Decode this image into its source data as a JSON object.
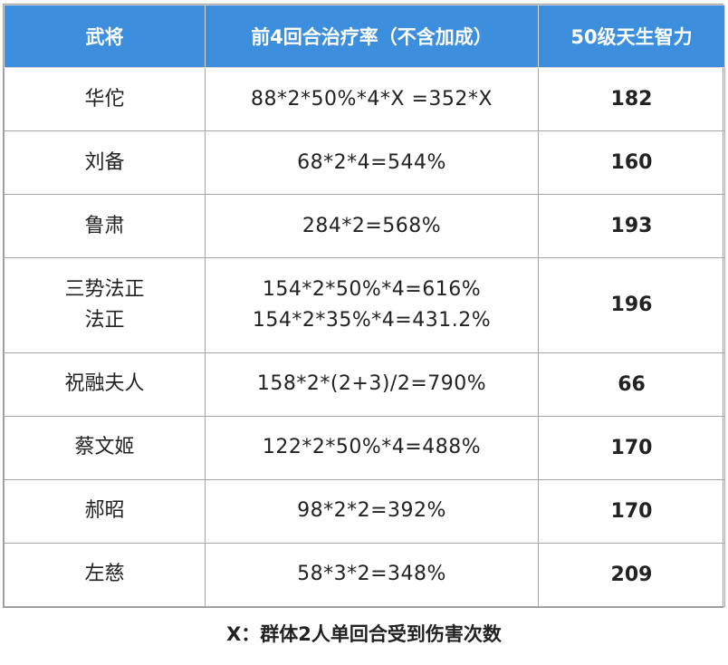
{
  "table": {
    "headers": [
      "武将",
      "前4回合治疗率（不含加成）",
      "50级天生智力"
    ],
    "rows": [
      {
        "name": [
          "华佗"
        ],
        "formula": [
          "88*2*50%*4*X =352*X"
        ],
        "intelligence": "182"
      },
      {
        "name": [
          "刘备"
        ],
        "formula": [
          "68*2*4=544%"
        ],
        "intelligence": "160"
      },
      {
        "name": [
          "鲁肃"
        ],
        "formula": [
          "284*2=568%"
        ],
        "intelligence": "193"
      },
      {
        "name": [
          "三势法正",
          "法正"
        ],
        "formula": [
          "154*2*50%*4=616%",
          "154*2*35%*4=431.2%"
        ],
        "intelligence": "196"
      },
      {
        "name": [
          "祝融夫人"
        ],
        "formula": [
          "158*2*(2+3)/2=790%"
        ],
        "intelligence": "66"
      },
      {
        "name": [
          "蔡文姬"
        ],
        "formula": [
          "122*2*50%*4=488%"
        ],
        "intelligence": "170"
      },
      {
        "name": [
          "郝昭"
        ],
        "formula": [
          "98*2*2=392%"
        ],
        "intelligence": "170"
      },
      {
        "name": [
          "左慈"
        ],
        "formula": [
          "58*3*2=348%"
        ],
        "intelligence": "209"
      }
    ]
  },
  "footnote": "X：群体2人单回合受到伤害次数",
  "colors": {
    "header_bg": "#3d8fdd",
    "header_text": "#ffffff",
    "grid": "#a6a6a6"
  }
}
